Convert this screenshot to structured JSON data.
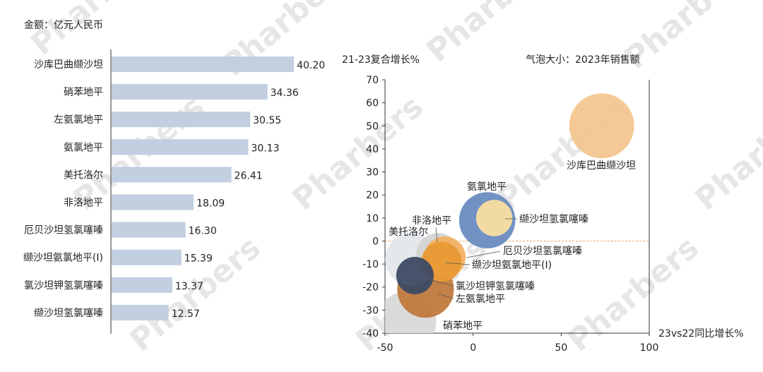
{
  "chart_data": [
    {
      "type": "bar",
      "orientation": "horizontal",
      "unit_label": "金额：亿元人民币",
      "categories": [
        "沙库巴曲缬沙坦",
        "硝苯地平",
        "左氨氯地平",
        "氨氯地平",
        "美托洛尔",
        "非洛地平",
        "厄贝沙坦氢氯噻嗪",
        "缬沙坦氨氯地平(Ⅰ)",
        "氯沙坦钾氢氯噻嗪",
        "缬沙坦氢氯噻嗪"
      ],
      "values": [
        40.2,
        34.36,
        30.55,
        30.13,
        26.41,
        18.09,
        16.3,
        15.39,
        13.37,
        12.57
      ],
      "value_labels": [
        "40.20",
        "34.36",
        "30.55",
        "30.13",
        "26.41",
        "18.09",
        "16.30",
        "15.39",
        "13.37",
        "12.57"
      ],
      "bar_color": "#c2cfe1"
    },
    {
      "type": "scatter",
      "subtype": "bubble",
      "ylabel": "21-23复合增长%",
      "xlabel": "23vs22同比增长%",
      "size_label": "气泡大小：2023年销售额",
      "xlim": [
        -50,
        100
      ],
      "ylim": [
        -40,
        70
      ],
      "xticks": [
        "-50",
        "0",
        "50",
        "100"
      ],
      "yticks": [
        "70",
        "60",
        "50",
        "40",
        "30",
        "20",
        "10",
        "0",
        "-10",
        "-20",
        "-30",
        "-40"
      ],
      "points": [
        {
          "label": "沙库巴曲缬沙坦",
          "x": 73,
          "y": 50,
          "size": 40.2,
          "color": "#f4c690"
        },
        {
          "label": "硝苯地平",
          "x": -38,
          "y": -35,
          "size": 34.36,
          "color": "#d9d9d9"
        },
        {
          "label": "左氨氯地平",
          "x": -27,
          "y": -21,
          "size": 30.55,
          "color": "#c0793d"
        },
        {
          "label": "氨氯地平",
          "x": 8,
          "y": 9,
          "size": 30.13,
          "color": "#6a8cc1"
        },
        {
          "label": "美托洛尔",
          "x": -35,
          "y": -8,
          "size": 26.41,
          "color": "#e3e6eb"
        },
        {
          "label": "非洛地平",
          "x": -20,
          "y": -6,
          "size": 18.09,
          "color": "#d4d4d4"
        },
        {
          "label": "厄贝沙坦氢氯噻嗪",
          "x": -16,
          "y": -7,
          "size": 16.3,
          "color": "#f4b266"
        },
        {
          "label": "缬沙坦氨氯地平(Ⅰ)",
          "x": -18,
          "y": -9,
          "size": 15.39,
          "color": "#e89a35"
        },
        {
          "label": "氯沙坦钾氢氯噻嗪",
          "x": -33,
          "y": -15,
          "size": 13.37,
          "color": "#3e4a64"
        },
        {
          "label": "缬沙坦氢氯噻嗪",
          "x": 12,
          "y": 10,
          "size": 12.57,
          "color": "#fadfa0"
        }
      ],
      "zero_line_color": "#f0a46a"
    }
  ],
  "watermark": "Pharbers"
}
